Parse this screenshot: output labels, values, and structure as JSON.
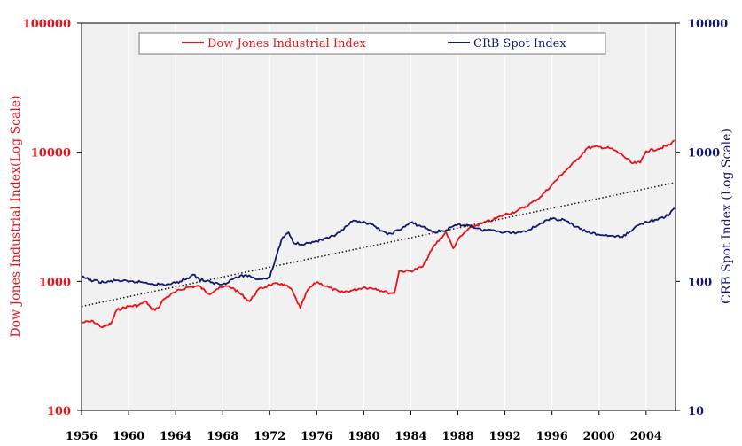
{
  "chart_data": {
    "type": "line",
    "ylabel": "Dow Jones Industrial Index(Log Scale)",
    "y2label": "CRB Spot Index (Log Scale)",
    "y_scale": "log",
    "ylim": [
      100,
      100000
    ],
    "y2lim": [
      10,
      10000
    ],
    "xlim": [
      1956,
      2006.5
    ],
    "x_ticks": [
      "1956",
      "1960",
      "1964",
      "1968",
      "1972",
      "1976",
      "1980",
      "1984",
      "1988",
      "1992",
      "1996",
      "2000",
      "2004"
    ],
    "y_ticks": [
      "100",
      "1000",
      "10000",
      "100000"
    ],
    "y2_ticks": [
      "10",
      "100",
      "1000",
      "10000"
    ],
    "grid": "vertical",
    "background": "#f1f1f1",
    "legend_position": "top",
    "series": [
      {
        "name": "Dow Jones Industrial Index",
        "axis": "left",
        "color": "#e8131a",
        "x": [
          1956,
          1957,
          1957.8,
          1958.5,
          1959,
          1960,
          1960.8,
          1961.5,
          1962,
          1962.5,
          1963,
          1964,
          1965,
          1966,
          1966.8,
          1967.5,
          1968,
          1968.5,
          1969,
          1970.3,
          1971,
          1972,
          1973,
          1973.8,
          1974.6,
          1975.2,
          1976,
          1977,
          1978,
          1979,
          1980,
          1981,
          1982,
          1982.6,
          1983,
          1984,
          1985,
          1986,
          1987,
          1987.6,
          1988,
          1989,
          1990,
          1991,
          1992,
          1993,
          1994,
          1995,
          1996,
          1997,
          1998,
          1999,
          2000,
          2001,
          2002,
          2002.8,
          2003.5,
          2004,
          2005,
          2006,
          2006.4
        ],
        "y": [
          480,
          490,
          440,
          470,
          600,
          640,
          650,
          700,
          600,
          620,
          730,
          830,
          900,
          920,
          800,
          870,
          900,
          920,
          870,
          700,
          860,
          940,
          960,
          880,
          620,
          850,
          990,
          900,
          820,
          850,
          900,
          880,
          820,
          810,
          1200,
          1200,
          1300,
          1900,
          2400,
          1800,
          2100,
          2600,
          2800,
          3000,
          3300,
          3500,
          3900,
          4500,
          5600,
          7000,
          8500,
          10800,
          11000,
          10700,
          9500,
          8200,
          8300,
          10200,
          10600,
          11400,
          12400
        ]
      },
      {
        "name": "CRB Spot Index",
        "axis": "right",
        "color": "#141a6e",
        "x": [
          1956,
          1957,
          1958,
          1959,
          1960,
          1961,
          1962,
          1963,
          1964,
          1965,
          1965.5,
          1966,
          1967,
          1968,
          1969,
          1970,
          1971,
          1972,
          1972.5,
          1973,
          1973.6,
          1974,
          1975,
          1976,
          1977,
          1978,
          1979,
          1980,
          1981,
          1982,
          1983,
          1984,
          1985,
          1986,
          1987,
          1988,
          1989,
          1990,
          1991,
          1992,
          1993,
          1994,
          1995,
          1996,
          1997,
          1998,
          1999,
          2000,
          2001,
          2002,
          2003,
          2004,
          2005,
          2006,
          2006.4
        ],
        "y": [
          108,
          101,
          98,
          102,
          99,
          99,
          96,
          94,
          97,
          106,
          113,
          104,
          98,
          95,
          106,
          112,
          104,
          107,
          150,
          210,
          240,
          200,
          195,
          205,
          215,
          240,
          290,
          290,
          265,
          230,
          250,
          285,
          265,
          240,
          250,
          275,
          270,
          250,
          250,
          240,
          238,
          250,
          280,
          305,
          300,
          265,
          240,
          230,
          225,
          220,
          260,
          290,
          300,
          330,
          370
        ]
      },
      {
        "name": "trend",
        "axis": "left",
        "color": "#222222",
        "style": "dotted",
        "x": [
          1956,
          2006.4
        ],
        "y": [
          640,
          5800
        ]
      }
    ]
  }
}
